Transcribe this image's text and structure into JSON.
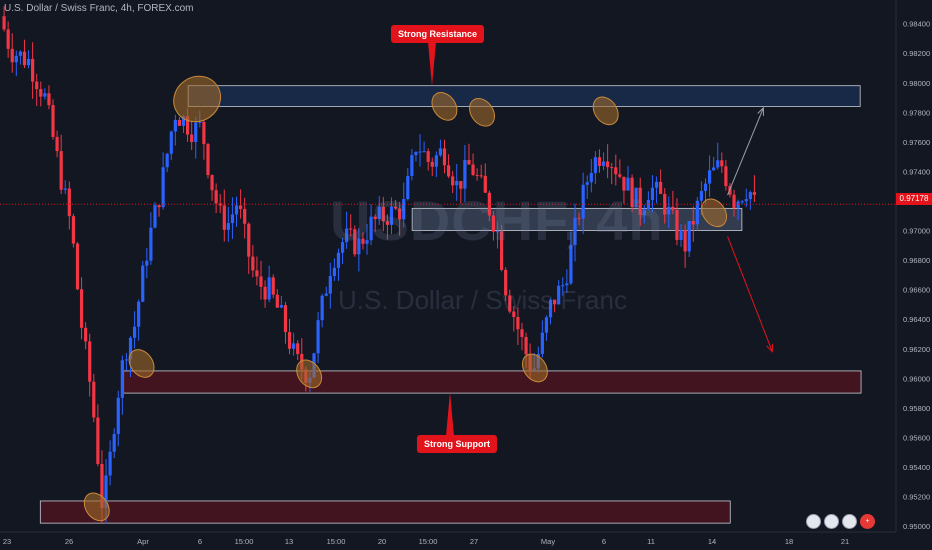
{
  "header": {
    "symbol_title": "U.S. Dollar / Swiss Franc, 4h, FOREX.com"
  },
  "watermark": {
    "symbol": "USDCHF, 4h",
    "name": "U.S. Dollar / Swiss Franc"
  },
  "annotations": {
    "resistance_label": "Strong Resistance",
    "support_label": "Strong Support"
  },
  "current_price": "0.97178",
  "avatars": [
    {
      "icon": "flag-icon",
      "glyph": ""
    },
    {
      "icon": "flag-icon",
      "glyph": ""
    },
    {
      "icon": "flag-icon",
      "glyph": ""
    },
    {
      "icon": "plus-icon",
      "glyph": "+"
    }
  ],
  "colors": {
    "background": "#131722",
    "bullish": "#2962ff",
    "bearish": "#f23645",
    "accent": "#e3131c"
  },
  "chart_data": {
    "type": "candlestick",
    "title": "",
    "xlabel": "",
    "ylabel": "",
    "ylim": [
      0.9496,
      0.9856
    ],
    "y_ticks": [
      "0.95000",
      "0.95200",
      "0.95400",
      "0.95600",
      "0.95800",
      "0.96000",
      "0.96200",
      "0.96400",
      "0.96600",
      "0.96800",
      "0.97000",
      "0.97400",
      "0.97600",
      "0.97800",
      "0.98000",
      "0.98200",
      "0.98400"
    ],
    "x_ticks": [
      "23",
      "26",
      "Apr",
      "6",
      "15:00",
      "13",
      "15:00",
      "20",
      "15:00",
      "27",
      "May",
      "6",
      "11",
      "14",
      "18",
      "21"
    ],
    "grid": false,
    "price_path": [
      [
        0,
        0.9845
      ],
      [
        0.012,
        0.9822
      ],
      [
        0.032,
        0.9815
      ],
      [
        0.05,
        0.979
      ],
      [
        0.065,
        0.9745
      ],
      [
        0.08,
        0.97
      ],
      [
        0.09,
        0.964
      ],
      [
        0.102,
        0.959
      ],
      [
        0.108,
        0.9555
      ],
      [
        0.114,
        0.9515
      ],
      [
        0.12,
        0.953
      ],
      [
        0.13,
        0.9585
      ],
      [
        0.14,
        0.962
      ],
      [
        0.15,
        0.9635
      ],
      [
        0.165,
        0.969
      ],
      [
        0.18,
        0.973
      ],
      [
        0.195,
        0.978
      ],
      [
        0.205,
        0.9775
      ],
      [
        0.215,
        0.9768
      ],
      [
        0.225,
        0.977
      ],
      [
        0.235,
        0.9735
      ],
      [
        0.245,
        0.971
      ],
      [
        0.255,
        0.9705
      ],
      [
        0.265,
        0.972
      ],
      [
        0.275,
        0.969
      ],
      [
        0.285,
        0.9665
      ],
      [
        0.3,
        0.966
      ],
      [
        0.315,
        0.964
      ],
      [
        0.33,
        0.9612
      ],
      [
        0.345,
        0.9602
      ],
      [
        0.355,
        0.9635
      ],
      [
        0.37,
        0.968
      ],
      [
        0.385,
        0.9695
      ],
      [
        0.4,
        0.969
      ],
      [
        0.415,
        0.9705
      ],
      [
        0.43,
        0.971
      ],
      [
        0.45,
        0.9715
      ],
      [
        0.465,
        0.976
      ],
      [
        0.48,
        0.9745
      ],
      [
        0.495,
        0.9755
      ],
      [
        0.51,
        0.973
      ],
      [
        0.525,
        0.9745
      ],
      [
        0.54,
        0.9725
      ],
      [
        0.555,
        0.97
      ],
      [
        0.565,
        0.966
      ],
      [
        0.575,
        0.964
      ],
      [
        0.585,
        0.962
      ],
      [
        0.595,
        0.9605
      ],
      [
        0.605,
        0.9625
      ],
      [
        0.615,
        0.965
      ],
      [
        0.63,
        0.9665
      ],
      [
        0.645,
        0.971
      ],
      [
        0.66,
        0.9745
      ],
      [
        0.675,
        0.9755
      ],
      [
        0.69,
        0.974
      ],
      [
        0.7,
        0.973
      ],
      [
        0.715,
        0.9715
      ],
      [
        0.725,
        0.973
      ],
      [
        0.74,
        0.972
      ],
      [
        0.755,
        0.97
      ],
      [
        0.765,
        0.969
      ],
      [
        0.775,
        0.971
      ],
      [
        0.79,
        0.9735
      ],
      [
        0.805,
        0.9745
      ],
      [
        0.82,
        0.972
      ],
      [
        0.835,
        0.973
      ],
      [
        0.842,
        0.9718
      ]
    ],
    "zones": [
      {
        "name": "resistance-zone",
        "from": 0.9784,
        "to": 0.9798,
        "x_start": 0.21,
        "x_end": 0.96,
        "color": "#1a2b4e"
      },
      {
        "name": "pivot-zone",
        "from": 0.97,
        "to": 0.9715,
        "x_start": 0.46,
        "x_end": 0.828,
        "color": "#3a4257"
      },
      {
        "name": "support-zone",
        "from": 0.959,
        "to": 0.9605,
        "x_start": 0.138,
        "x_end": 0.961,
        "color": "#4a1420"
      },
      {
        "name": "lower-support-zone",
        "from": 0.9502,
        "to": 0.9517,
        "x_start": 0.045,
        "x_end": 0.815,
        "color": "#4a1420"
      }
    ],
    "touches": [
      {
        "x": 0.22,
        "y": 0.9789
      },
      {
        "x": 0.158,
        "y": 0.961
      },
      {
        "x": 0.345,
        "y": 0.9603
      },
      {
        "x": 0.496,
        "y": 0.9784
      },
      {
        "x": 0.538,
        "y": 0.978
      },
      {
        "x": 0.597,
        "y": 0.9607
      },
      {
        "x": 0.676,
        "y": 0.9781
      },
      {
        "x": 0.108,
        "y": 0.9513
      },
      {
        "x": 0.797,
        "y": 0.9712
      }
    ],
    "projections": [
      {
        "name": "bullish-projection-arrow",
        "from": [
          0.812,
          0.9724
        ],
        "to": [
          0.852,
          0.9783
        ],
        "color": "#9aa0ab"
      },
      {
        "name": "bearish-projection-arrow",
        "from": [
          0.812,
          0.9696
        ],
        "to": [
          0.862,
          0.9618
        ],
        "color": "#e3131c"
      }
    ],
    "current_price_line": 0.97178
  }
}
